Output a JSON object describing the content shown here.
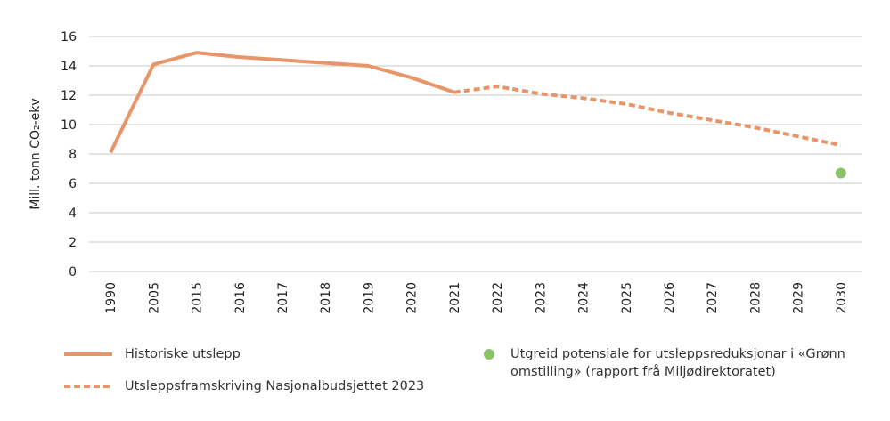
{
  "chart_data": {
    "type": "line",
    "ylabel": "Mill. tonn CO₂-ekv",
    "ylim": [
      0,
      16
    ],
    "yticks": [
      0,
      2,
      4,
      6,
      8,
      10,
      12,
      14,
      16
    ],
    "grid": true,
    "categories": [
      "1990",
      "2005",
      "2015",
      "2016",
      "2017",
      "2018",
      "2019",
      "2020",
      "2021",
      "2022",
      "2023",
      "2024",
      "2025",
      "2026",
      "2027",
      "2028",
      "2029",
      "2030"
    ],
    "series": [
      {
        "name": "Historiske utslepp",
        "style": "solid",
        "color": "#e8956a",
        "points": [
          [
            "1990",
            8.1
          ],
          [
            "2005",
            14.1
          ],
          [
            "2015",
            14.9
          ],
          [
            "2016",
            14.6
          ],
          [
            "2017",
            14.4
          ],
          [
            "2018",
            14.2
          ],
          [
            "2019",
            14.0
          ],
          [
            "2020",
            13.2
          ],
          [
            "2021",
            12.2
          ]
        ]
      },
      {
        "name": "Utsleppsframskriving Nasjonalbudsjettet 2023",
        "style": "dashed",
        "color": "#e8956a",
        "points": [
          [
            "2021",
            12.2
          ],
          [
            "2022",
            12.6
          ],
          [
            "2023",
            12.1
          ],
          [
            "2024",
            11.8
          ],
          [
            "2025",
            11.4
          ],
          [
            "2026",
            10.8
          ],
          [
            "2027",
            10.3
          ],
          [
            "2028",
            9.8
          ],
          [
            "2029",
            9.2
          ],
          [
            "2030",
            8.6
          ]
        ]
      },
      {
        "name": "Utgreid potensiale for utsleppsreduksjonar i «Grønn omstilling» (rapport frå Miljødirektoratet)",
        "style": "point",
        "color": "#8cc26a",
        "points": [
          [
            "2030",
            6.7
          ]
        ]
      }
    ],
    "legend_position": "bottom"
  }
}
